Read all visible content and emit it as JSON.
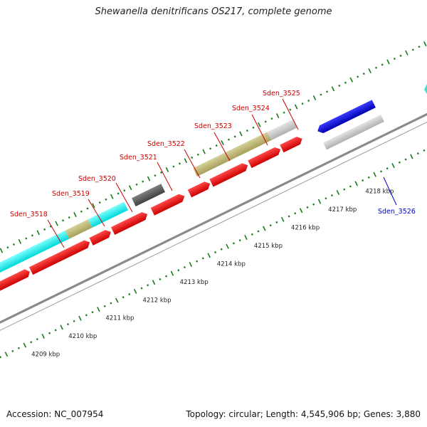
{
  "title": "Shewanella denitrificans OS217, complete genome",
  "accession": "Accession: NC_007954",
  "genome_info": "Topology: circular; Length: 4,545,906 bp; Genes: 3,880",
  "kbp_labels": [
    "4209 kbp",
    "4210 kbp",
    "4211 kbp",
    "4212 kbp",
    "4213 kbp",
    "4214 kbp",
    "4215 kbp",
    "4216 kbp",
    "4217 kbp",
    "4218 kbp"
  ],
  "genes": [
    {
      "name": "Sden_3518",
      "color": "#cc0000"
    },
    {
      "name": "Sden_3519",
      "color": "#cc0000"
    },
    {
      "name": "Sden_3520",
      "color": "#cc0000"
    },
    {
      "name": "Sden_3521",
      "color": "#cc0000"
    },
    {
      "name": "Sden_3522",
      "color": "#cc0000"
    },
    {
      "name": "Sden_3523",
      "color": "#cc0000"
    },
    {
      "name": "Sden_3524",
      "color": "#cc0000"
    },
    {
      "name": "Sden_3525",
      "color": "#cc0000"
    },
    {
      "name": "Sden_3526",
      "color": "#0000cc"
    }
  ],
  "colors": {
    "gene_red": "#ff0000",
    "gene_blue": "#0000ff",
    "cog_cyan": "#00ffff",
    "cog_khaki": "#bdb76b",
    "cog_gray": "#c8c8c8",
    "cog_darkgray": "#555555",
    "tick_green": "#008000",
    "backbone": "#888888"
  }
}
